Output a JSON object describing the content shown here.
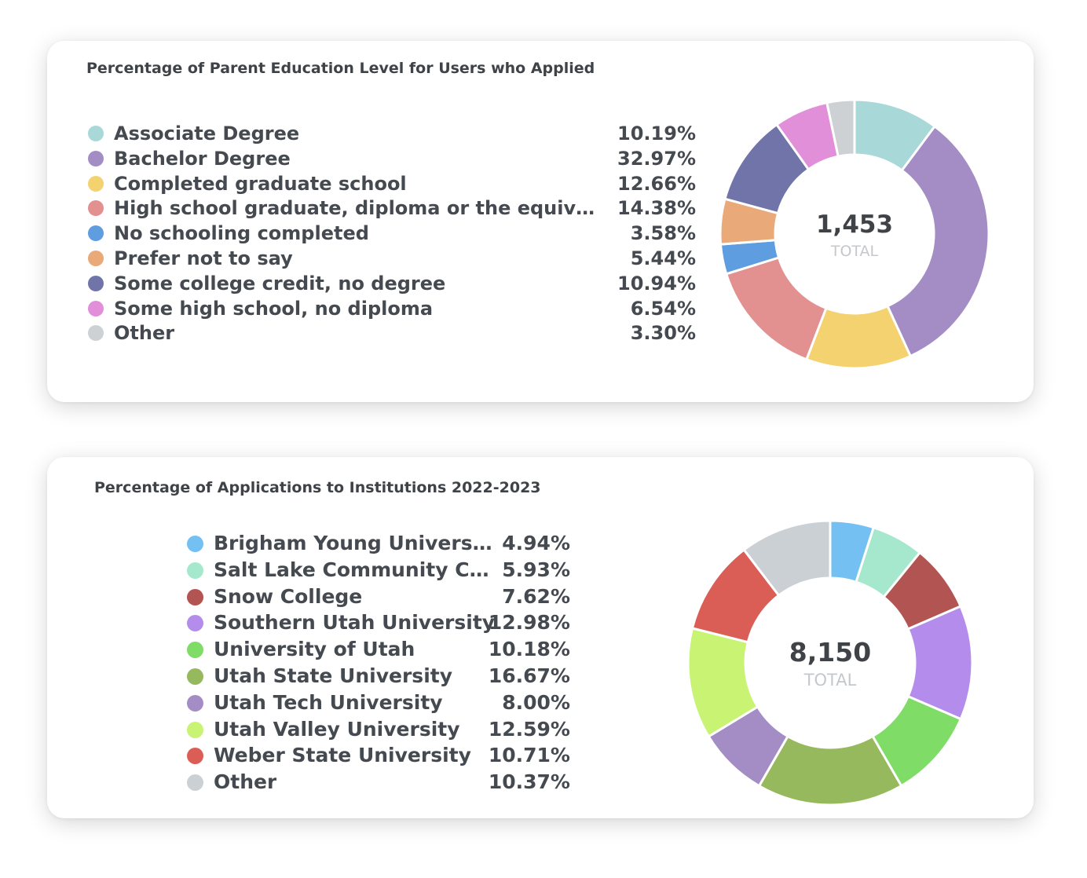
{
  "charts": [
    {
      "id": "card1",
      "title": "Percentage of Parent Education Level for Users who Applied",
      "total": "1,453",
      "total_label": "TOTAL",
      "chart_data": {
        "type": "pie",
        "title": "Percentage of Parent Education Level for Users who Applied",
        "categories": [
          "Associate Degree",
          "Bachelor Degree",
          "Completed graduate school",
          "High school graduate, diploma or the equivalent (for e…",
          "No schooling completed",
          "Prefer not to say",
          "Some college credit, no degree",
          "Some high school, no diploma",
          "Other"
        ],
        "values": [
          10.19,
          32.97,
          12.66,
          14.38,
          3.58,
          5.44,
          10.94,
          6.54,
          3.3
        ],
        "labels": [
          "10.19%",
          "32.97%",
          "12.66%",
          "14.38%",
          "3.58%",
          "5.44%",
          "10.94%",
          "6.54%",
          "3.30%"
        ],
        "colors": [
          "#a8d8d8",
          "#a48dc4",
          "#f3d26f",
          "#e39190",
          "#5e9ddf",
          "#e9a978",
          "#7074a8",
          "#e18fd8",
          "#cdd1d4"
        ],
        "legend": "left"
      }
    },
    {
      "id": "card2",
      "title": "Percentage of Applications to Institutions 2022-2023",
      "total": "8,150",
      "total_label": "TOTAL",
      "chart_data": {
        "type": "pie",
        "title": "Percentage of Applications to Institutions 2022-2023",
        "categories": [
          "Brigham Young University",
          "Salt Lake Community College",
          "Snow College",
          "Southern Utah University",
          "University of Utah",
          "Utah State University",
          "Utah Tech University",
          "Utah Valley University",
          "Weber State University",
          "Other"
        ],
        "values": [
          4.94,
          5.93,
          7.62,
          12.98,
          10.18,
          16.67,
          8.0,
          12.59,
          10.71,
          10.37
        ],
        "labels": [
          "4.94%",
          "5.93%",
          "7.62%",
          "12.98%",
          "10.18%",
          "16.67%",
          "8.00%",
          "12.59%",
          "10.71%",
          "10.37%"
        ],
        "colors": [
          "#74c0f2",
          "#a6e8cd",
          "#b25452",
          "#b48ceb",
          "#7fdc67",
          "#97b95e",
          "#a48dc4",
          "#c8f373",
          "#da5e56",
          "#cbd0d4"
        ],
        "legend": "left"
      }
    }
  ]
}
